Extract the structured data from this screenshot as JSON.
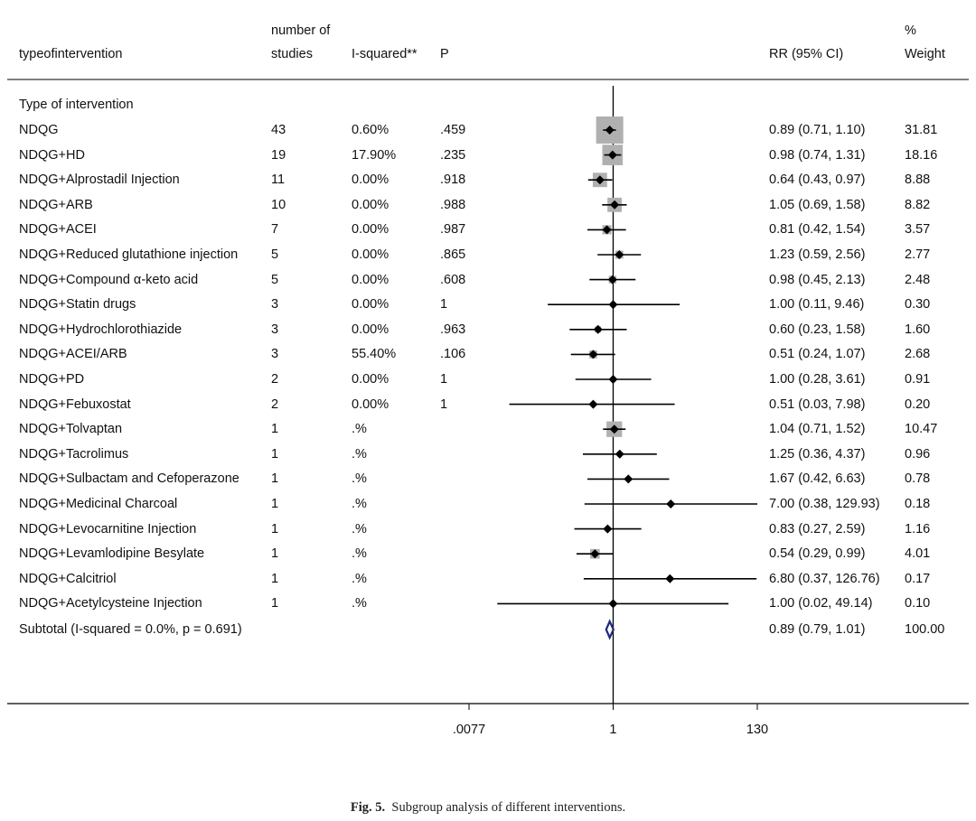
{
  "chart_data": {
    "type": "forest",
    "headers": {
      "group": "typeofintervention",
      "studies_line1": "number of",
      "studies_line2": "studies",
      "i_squared": "I-squared**",
      "p": "P",
      "rr": "RR (95% CI)",
      "weight_line1": "%",
      "weight_line2": "Weight"
    },
    "section_label": "Type of intervention",
    "rows": [
      {
        "label": "NDQG",
        "studies": "43",
        "i2": "0.60%",
        "p": ".459",
        "rr": 0.89,
        "lo": 0.71,
        "hi": 1.1,
        "rr_text": "0.89 (0.71, 1.10)",
        "weight": 31.81,
        "weight_text": "31.81"
      },
      {
        "label": "NDQG+HD",
        "studies": "19",
        "i2": "17.90%",
        "p": ".235",
        "rr": 0.98,
        "lo": 0.74,
        "hi": 1.31,
        "rr_text": "0.98 (0.74, 1.31)",
        "weight": 18.16,
        "weight_text": "18.16"
      },
      {
        "label": "NDQG+Alprostadil Injection",
        "studies": "11",
        "i2": "0.00%",
        "p": ".918",
        "rr": 0.64,
        "lo": 0.43,
        "hi": 0.97,
        "rr_text": "0.64 (0.43, 0.97)",
        "weight": 8.88,
        "weight_text": "8.88"
      },
      {
        "label": "NDQG+ARB",
        "studies": "10",
        "i2": "0.00%",
        "p": ".988",
        "rr": 1.05,
        "lo": 0.69,
        "hi": 1.58,
        "rr_text": "1.05 (0.69, 1.58)",
        "weight": 8.82,
        "weight_text": "8.82"
      },
      {
        "label": "NDQG+ACEI",
        "studies": "7",
        "i2": "0.00%",
        "p": ".987",
        "rr": 0.81,
        "lo": 0.42,
        "hi": 1.54,
        "rr_text": "0.81 (0.42, 1.54)",
        "weight": 3.57,
        "weight_text": "3.57"
      },
      {
        "label": "NDQG+Reduced glutathione injection",
        "studies": "5",
        "i2": "0.00%",
        "p": ".865",
        "rr": 1.23,
        "lo": 0.59,
        "hi": 2.56,
        "rr_text": "1.23 (0.59, 2.56)",
        "weight": 2.77,
        "weight_text": "2.77"
      },
      {
        "label": "NDQG+Compound α-keto acid",
        "studies": "5",
        "i2": "0.00%",
        "p": ".608",
        "rr": 0.98,
        "lo": 0.45,
        "hi": 2.13,
        "rr_text": "0.98 (0.45, 2.13)",
        "weight": 2.48,
        "weight_text": "2.48"
      },
      {
        "label": "NDQG+Statin drugs",
        "studies": "3",
        "i2": "0.00%",
        "p": "1",
        "rr": 1.0,
        "lo": 0.11,
        "hi": 9.46,
        "rr_text": "1.00 (0.11, 9.46)",
        "weight": 0.3,
        "weight_text": "0.30"
      },
      {
        "label": "NDQG+Hydrochlorothiazide",
        "studies": "3",
        "i2": "0.00%",
        "p": ".963",
        "rr": 0.6,
        "lo": 0.23,
        "hi": 1.58,
        "rr_text": "0.60 (0.23, 1.58)",
        "weight": 1.6,
        "weight_text": "1.60"
      },
      {
        "label": "NDQG+ACEI/ARB",
        "studies": "3",
        "i2": "55.40%",
        "p": ".106",
        "rr": 0.51,
        "lo": 0.24,
        "hi": 1.07,
        "rr_text": "0.51 (0.24, 1.07)",
        "weight": 2.68,
        "weight_text": "2.68"
      },
      {
        "label": "NDQG+PD",
        "studies": "2",
        "i2": "0.00%",
        "p": "1",
        "rr": 1.0,
        "lo": 0.28,
        "hi": 3.61,
        "rr_text": "1.00 (0.28, 3.61)",
        "weight": 0.91,
        "weight_text": "0.91"
      },
      {
        "label": "NDQG+Febuxostat",
        "studies": "2",
        "i2": "0.00%",
        "p": "1",
        "rr": 0.51,
        "lo": 0.03,
        "hi": 7.98,
        "rr_text": "0.51 (0.03, 7.98)",
        "weight": 0.2,
        "weight_text": "0.20"
      },
      {
        "label": "NDQG+Tolvaptan",
        "studies": "1",
        "i2": ".%",
        "p": "",
        "rr": 1.04,
        "lo": 0.71,
        "hi": 1.52,
        "rr_text": "1.04 (0.71, 1.52)",
        "weight": 10.47,
        "weight_text": "10.47"
      },
      {
        "label": "NDQG+Tacrolimus",
        "studies": "1",
        "i2": ".%",
        "p": "",
        "rr": 1.25,
        "lo": 0.36,
        "hi": 4.37,
        "rr_text": "1.25 (0.36, 4.37)",
        "weight": 0.96,
        "weight_text": "0.96"
      },
      {
        "label": "NDQG+Sulbactam and Cefoperazone",
        "studies": "1",
        "i2": ".%",
        "p": "",
        "rr": 1.67,
        "lo": 0.42,
        "hi": 6.63,
        "rr_text": "1.67 (0.42, 6.63)",
        "weight": 0.78,
        "weight_text": "0.78"
      },
      {
        "label": "NDQG+Medicinal Charcoal",
        "studies": "1",
        "i2": ".%",
        "p": "",
        "rr": 7.0,
        "lo": 0.38,
        "hi": 129.93,
        "rr_text": "7.00 (0.38, 129.93)",
        "weight": 0.18,
        "weight_text": "0.18"
      },
      {
        "label": "NDQG+Levocarnitine Injection",
        "studies": "1",
        "i2": ".%",
        "p": "",
        "rr": 0.83,
        "lo": 0.27,
        "hi": 2.59,
        "rr_text": "0.83 (0.27, 2.59)",
        "weight": 1.16,
        "weight_text": "1.16"
      },
      {
        "label": "NDQG+Levamlodipine Besylate",
        "studies": "1",
        "i2": ".%",
        "p": "",
        "rr": 0.54,
        "lo": 0.29,
        "hi": 0.99,
        "rr_text": "0.54 (0.29, 0.99)",
        "weight": 4.01,
        "weight_text": "4.01"
      },
      {
        "label": "NDQG+Calcitriol",
        "studies": "1",
        "i2": ".%",
        "p": "",
        "rr": 6.8,
        "lo": 0.37,
        "hi": 126.76,
        "rr_text": "6.80 (0.37, 126.76)",
        "weight": 0.17,
        "weight_text": "0.17"
      },
      {
        "label": "NDQG+Acetylcysteine Injection",
        "studies": "1",
        "i2": ".%",
        "p": "",
        "rr": 1.0,
        "lo": 0.02,
        "hi": 49.14,
        "rr_text": "1.00 (0.02, 49.14)",
        "weight": 0.1,
        "weight_text": "0.10"
      }
    ],
    "subtotal": {
      "label": "Subtotal  (I-squared = 0.0%, p = 0.691)",
      "rr": 0.89,
      "lo": 0.79,
      "hi": 1.01,
      "rr_text": "0.89 (0.79, 1.01)",
      "weight_text": "100.00"
    },
    "x_scale": "log",
    "x_range": [
      0.0077,
      130
    ],
    "x_ticks": [
      {
        "value": 0.0077,
        "label": ".0077"
      },
      {
        "value": 1,
        "label": "1"
      },
      {
        "value": 130,
        "label": "130"
      }
    ],
    "colors": {
      "box": "#b0b0b0",
      "point": "#000000",
      "ci": "#000000",
      "diamond": "#1f2a7a",
      "axis": "#000000"
    }
  },
  "caption": {
    "label": "Fig. 5.",
    "text": "Subgroup analysis of different interventions."
  }
}
